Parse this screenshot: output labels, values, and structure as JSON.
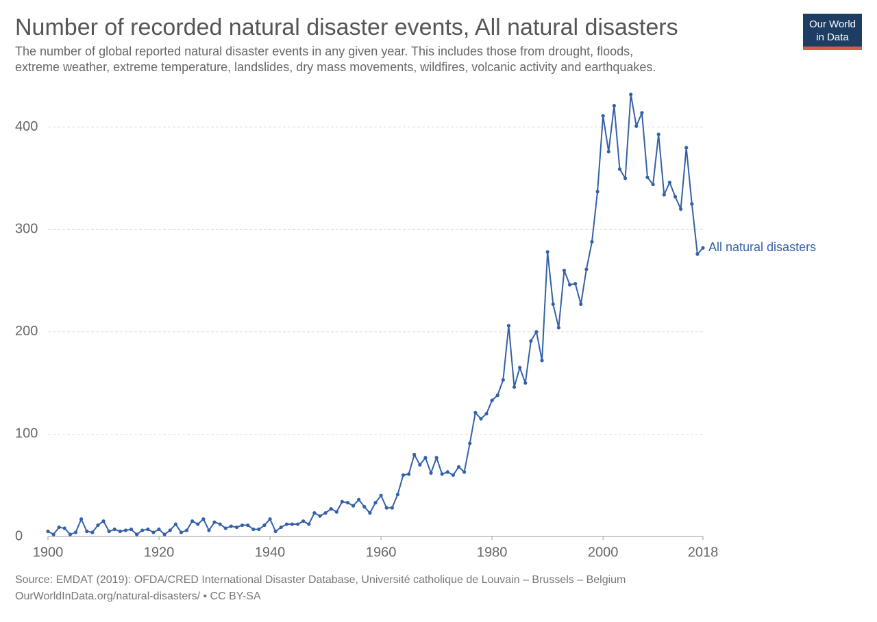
{
  "chart_data": {
    "type": "line",
    "title": "Number of recorded natural disaster events, All natural disasters",
    "subtitle": "The number of global reported natural disaster events in any given year. This includes those from drought, floods,",
    "subtitle_line2": "extreme weather, extreme temperature, landslides, dry mass movements, wildfires, volcanic activity and earthquakes.",
    "logo": [
      "Our World",
      "in Data"
    ],
    "source": "Source: EMDAT (2019): OFDA/CRED International Disaster Database, Université catholique de Louvain – Brussels – Belgium",
    "license": "OurWorldInData.org/natural-disasters/ • CC BY-SA",
    "x": [
      1900,
      1901,
      1902,
      1903,
      1904,
      1905,
      1906,
      1907,
      1908,
      1909,
      1910,
      1911,
      1912,
      1913,
      1914,
      1915,
      1916,
      1917,
      1918,
      1919,
      1920,
      1921,
      1922,
      1923,
      1924,
      1925,
      1926,
      1927,
      1928,
      1929,
      1930,
      1931,
      1932,
      1933,
      1934,
      1935,
      1936,
      1937,
      1938,
      1939,
      1940,
      1941,
      1942,
      1943,
      1944,
      1945,
      1946,
      1947,
      1948,
      1949,
      1950,
      1951,
      1952,
      1953,
      1954,
      1955,
      1956,
      1957,
      1958,
      1959,
      1960,
      1961,
      1962,
      1963,
      1964,
      1965,
      1966,
      1967,
      1968,
      1969,
      1970,
      1971,
      1972,
      1973,
      1974,
      1975,
      1976,
      1977,
      1978,
      1979,
      1980,
      1981,
      1982,
      1983,
      1984,
      1985,
      1986,
      1987,
      1988,
      1989,
      1990,
      1991,
      1992,
      1993,
      1994,
      1995,
      1996,
      1997,
      1998,
      1999,
      2000,
      2001,
      2002,
      2003,
      2004,
      2005,
      2006,
      2007,
      2008,
      2009,
      2010,
      2011,
      2012,
      2013,
      2014,
      2015,
      2016,
      2017,
      2018
    ],
    "series": [
      {
        "name": "All natural disasters",
        "color": "#3360a9",
        "values": [
          5,
          2,
          9,
          8,
          2,
          4,
          17,
          5,
          4,
          11,
          15,
          5,
          7,
          5,
          6,
          7,
          2,
          6,
          7,
          4,
          7,
          2,
          6,
          12,
          4,
          6,
          15,
          12,
          17,
          6,
          14,
          12,
          8,
          10,
          9,
          11,
          11,
          7,
          7,
          11,
          17,
          5,
          9,
          12,
          12,
          12,
          15,
          12,
          23,
          20,
          23,
          27,
          24,
          34,
          33,
          30,
          36,
          29,
          23,
          33,
          40,
          28,
          28,
          41,
          60,
          61,
          80,
          70,
          77,
          62,
          77,
          61,
          63,
          60,
          68,
          63,
          91,
          121,
          115,
          120,
          133,
          138,
          153,
          206,
          146,
          165,
          150,
          191,
          200,
          172,
          278,
          227,
          204,
          260,
          246,
          247,
          227,
          261,
          288,
          337,
          411,
          376,
          421,
          359,
          350,
          432,
          401,
          414,
          351,
          344,
          393,
          334,
          346,
          332,
          320,
          380,
          325,
          276,
          282
        ]
      }
    ],
    "xlim": [
      1900,
      2018
    ],
    "xticks": [
      1900,
      1920,
      1940,
      1960,
      1980,
      2000,
      2018
    ],
    "ylim": [
      0,
      440
    ],
    "yticks": [
      0,
      100,
      200,
      300,
      400
    ],
    "grid": true
  }
}
